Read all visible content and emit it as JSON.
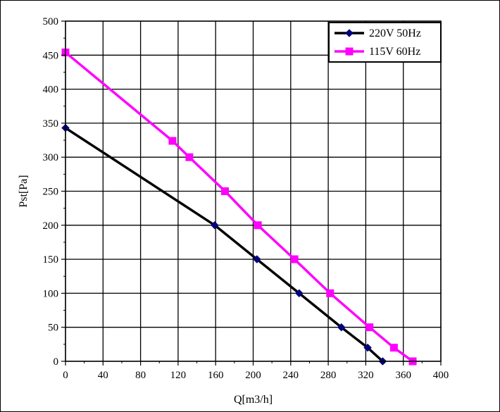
{
  "chart_data": {
    "type": "line",
    "xlabel": "Q[m3/h]",
    "ylabel": "Pst[Pa]",
    "xlim": [
      0,
      400
    ],
    "ylim": [
      0,
      500
    ],
    "xticks": [
      0,
      40,
      80,
      120,
      160,
      200,
      240,
      280,
      320,
      360,
      400
    ],
    "yticks": [
      0,
      50,
      100,
      150,
      200,
      250,
      300,
      350,
      400,
      450,
      500
    ],
    "grid": true,
    "legend_position": "top-right",
    "series": [
      {
        "name": "220V 50Hz",
        "color": "#000000",
        "marker_color": "#000080",
        "marker": "diamond",
        "points": [
          [
            0,
            343
          ],
          [
            159,
            200
          ],
          [
            204,
            150
          ],
          [
            249,
            100
          ],
          [
            294,
            50
          ],
          [
            322,
            20
          ],
          [
            338,
            0
          ]
        ]
      },
      {
        "name": "115V 60Hz",
        "color": "#ff00ff",
        "marker_color": "#ff00ff",
        "marker": "square",
        "points": [
          [
            0,
            454
          ],
          [
            114,
            324
          ],
          [
            132,
            300
          ],
          [
            170,
            250
          ],
          [
            205,
            200
          ],
          [
            244,
            150
          ],
          [
            282,
            100
          ],
          [
            324,
            50
          ],
          [
            350,
            20
          ],
          [
            370,
            0
          ]
        ]
      }
    ]
  }
}
